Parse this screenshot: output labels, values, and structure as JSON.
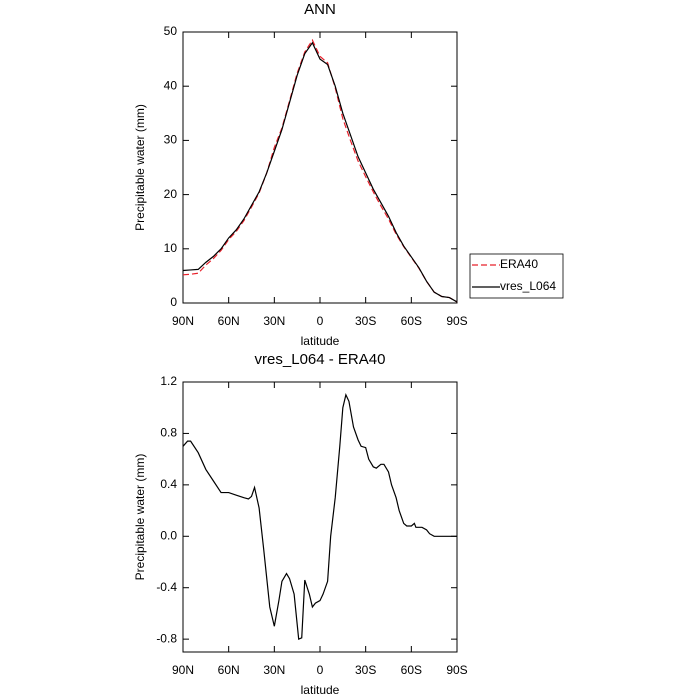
{
  "chart_data": [
    {
      "type": "line",
      "title": "ANN",
      "xlabel": "latitude",
      "ylabel": "Precipitable water (mm)",
      "x": [
        90,
        85,
        80,
        75,
        70,
        65,
        60,
        55,
        50,
        45,
        40,
        35,
        30,
        25,
        20,
        15,
        10,
        5,
        0,
        -5,
        -10,
        -15,
        -20,
        -25,
        -30,
        -35,
        -40,
        -45,
        -50,
        -55,
        -60,
        -65,
        -70,
        -75,
        -80,
        -85,
        -90
      ],
      "series": [
        {
          "name": "ERA40",
          "color": "#e8202a",
          "line_style": "dashed",
          "values": [
            5.2,
            5.3,
            5.5,
            7,
            8.2,
            9.7,
            11.7,
            13.2,
            15.2,
            17.7,
            20.3,
            24,
            28.7,
            32.3,
            37.3,
            42.4,
            46.3,
            48.5,
            45.5,
            44.3,
            39.7,
            34,
            30,
            26.2,
            23.3,
            20.5,
            17.9,
            15.5,
            12.7,
            10.4,
            8.4,
            6.4,
            4,
            2,
            1.2,
            1,
            0.2
          ]
        },
        {
          "name": "vres_L064",
          "color": "#000000",
          "line_style": "solid",
          "values": [
            6,
            6.1,
            6.2,
            7.5,
            8.6,
            10,
            12,
            13.5,
            15.5,
            18,
            20.5,
            24,
            28,
            32,
            37,
            42,
            46,
            48,
            45,
            44,
            40,
            35,
            31,
            27,
            24,
            21,
            18.5,
            16,
            13,
            10.5,
            8.5,
            6.5,
            4,
            2,
            1.2,
            1,
            0.2
          ]
        }
      ],
      "xlim": [
        90,
        -90
      ],
      "xticks": [
        {
          "value": 90,
          "label": "90N"
        },
        {
          "value": 60,
          "label": "60N"
        },
        {
          "value": 30,
          "label": "30N"
        },
        0,
        {
          "value": -30,
          "label": "30S"
        },
        {
          "value": -60,
          "label": "60S"
        },
        {
          "value": -90,
          "label": "90S"
        }
      ],
      "ylim": [
        0,
        50
      ],
      "yticks": [
        0,
        10,
        20,
        30,
        40,
        50
      ],
      "legend": "right"
    },
    {
      "type": "line",
      "title": "vres_L064 - ERA40",
      "xlabel": "latitude",
      "ylabel": "Precipitable water (mm)",
      "x": [
        90,
        87,
        85,
        80,
        75,
        70,
        65,
        60,
        55,
        50,
        47,
        45,
        43,
        40,
        37,
        33,
        30,
        27,
        25,
        22,
        20,
        17,
        14,
        12,
        10,
        7,
        5,
        3,
        0,
        -2,
        -5,
        -7,
        -10,
        -13,
        -15,
        -17,
        -19,
        -22,
        -25,
        -27,
        -30,
        -32,
        -35,
        -37,
        -40,
        -42,
        -45,
        -47,
        -50,
        -52,
        -55,
        -57,
        -60,
        -62,
        -63,
        -67,
        -70,
        -72,
        -75,
        -80,
        -85,
        -90
      ],
      "series": [
        {
          "name": "vres_L064",
          "color": "#000000",
          "line_style": "solid",
          "values": [
            0.7,
            0.74,
            0.74,
            0.65,
            0.52,
            0.43,
            0.34,
            0.34,
            0.32,
            0.3,
            0.29,
            0.31,
            0.38,
            0.22,
            -0.1,
            -0.55,
            -0.7,
            -0.5,
            -0.35,
            -0.29,
            -0.33,
            -0.45,
            -0.8,
            -0.79,
            -0.34,
            -0.45,
            -0.55,
            -0.52,
            -0.5,
            -0.45,
            -0.35,
            0.0,
            0.3,
            0.7,
            1.0,
            1.1,
            1.05,
            0.85,
            0.75,
            0.7,
            0.69,
            0.6,
            0.54,
            0.53,
            0.56,
            0.56,
            0.5,
            0.4,
            0.3,
            0.2,
            0.1,
            0.08,
            0.08,
            0.1,
            0.07,
            0.07,
            0.05,
            0.02,
            0.0,
            0.0,
            0.0,
            0.0
          ]
        }
      ],
      "xlim": [
        90,
        -90
      ],
      "xticks": [
        {
          "value": 90,
          "label": "90N"
        },
        {
          "value": 60,
          "label": "60N"
        },
        {
          "value": 30,
          "label": "30N"
        },
        0,
        {
          "value": -30,
          "label": "30S"
        },
        {
          "value": -60,
          "label": "60S"
        },
        {
          "value": -90,
          "label": "90S"
        }
      ],
      "ylim": [
        -0.9,
        1.2
      ],
      "yticks": [
        -0.8,
        -0.4,
        {
          "value": 0,
          "label": "0.0"
        },
        0.4,
        0.8,
        1.2
      ]
    }
  ]
}
